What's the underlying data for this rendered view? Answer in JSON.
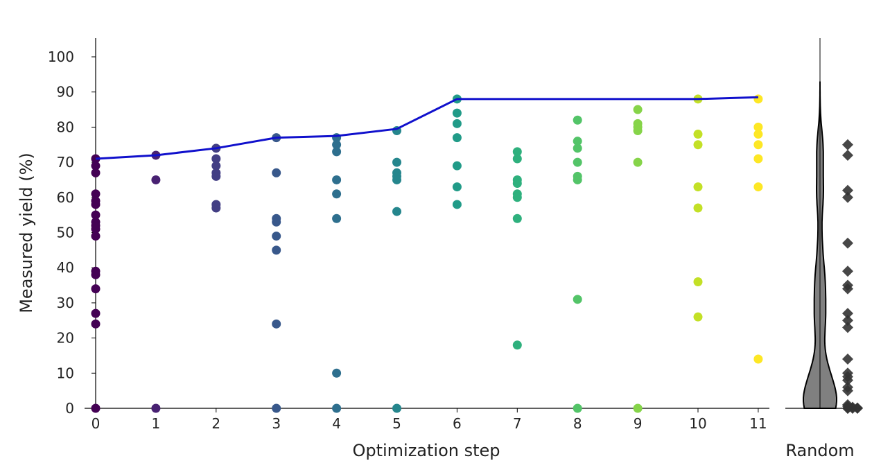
{
  "chart_data": {
    "type": "scatter",
    "xlabel": "Optimization step",
    "ylabel": "Measured yield (%)",
    "xlim": [
      0,
      11
    ],
    "ylim": [
      0,
      100
    ],
    "x_ticks": [
      "0",
      "1",
      "2",
      "3",
      "4",
      "5",
      "6",
      "7",
      "8",
      "9",
      "10",
      "11"
    ],
    "y_ticks": [
      "0",
      "10",
      "20",
      "30",
      "40",
      "50",
      "60",
      "70",
      "80",
      "90",
      "100"
    ],
    "grid": false,
    "colormap": [
      "#440154",
      "#482475",
      "#414487",
      "#355f8d",
      "#2a788e",
      "#21918c",
      "#22a884",
      "#44bf70",
      "#7ad151",
      "#bddf26",
      "#fde725"
    ],
    "best_so_far_color": "#1010cc",
    "points": [
      {
        "step": 0,
        "yields": [
          71,
          69,
          67,
          61,
          59,
          58,
          55,
          53,
          52,
          51,
          49,
          39,
          38,
          34,
          27,
          24,
          0
        ]
      },
      {
        "step": 1,
        "yields": [
          72,
          65,
          0
        ]
      },
      {
        "step": 2,
        "yields": [
          74,
          71,
          69,
          67,
          66,
          58,
          57
        ]
      },
      {
        "step": 3,
        "yields": [
          77,
          67,
          54,
          53,
          49,
          45,
          24,
          0
        ]
      },
      {
        "step": 4,
        "yields": [
          77,
          75,
          73,
          65,
          61,
          54,
          10,
          0
        ]
      },
      {
        "step": 5,
        "yields": [
          79,
          70,
          67,
          66,
          65,
          56,
          0
        ]
      },
      {
        "step": 6,
        "yields": [
          88,
          84,
          81,
          77,
          69,
          63,
          58
        ]
      },
      {
        "step": 7,
        "yields": [
          73,
          71,
          65,
          64,
          61,
          60,
          54,
          18
        ]
      },
      {
        "step": 8,
        "yields": [
          82,
          76,
          74,
          70,
          66,
          65,
          31,
          0
        ]
      },
      {
        "step": 9,
        "yields": [
          85,
          81,
          80,
          79,
          70,
          0
        ]
      },
      {
        "step": 10,
        "yields": [
          88,
          78,
          75,
          63,
          57,
          36,
          26
        ]
      },
      {
        "step": 11,
        "yields": [
          88,
          80,
          78,
          75,
          71,
          63,
          14
        ]
      }
    ],
    "best_so_far": [
      71,
      72,
      74,
      77,
      77.5,
      79.5,
      88,
      88,
      88,
      88,
      88,
      88.5
    ],
    "random": {
      "label": "Random",
      "marker": "diamond",
      "color": "#333333",
      "yields": [
        75,
        72,
        62,
        60,
        47,
        39,
        35,
        34,
        27,
        25,
        23,
        14,
        10,
        9,
        8,
        6,
        5,
        1,
        0.6,
        0.3,
        0.1,
        0,
        0,
        0,
        0
      ],
      "violin_color": "#808080"
    }
  }
}
